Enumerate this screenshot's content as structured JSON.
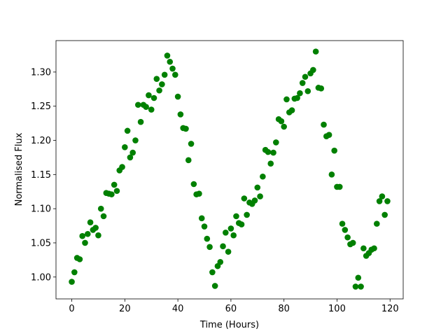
{
  "chart_data": {
    "type": "scatter",
    "x_label": "Time (Hours)",
    "y_label": "Normalised Flux",
    "color": "#008000",
    "xlim": [
      -5.95,
      124.95
    ],
    "ylim": [
      0.968,
      1.346
    ],
    "xticks": [
      0,
      20,
      40,
      60,
      80,
      100,
      120
    ],
    "yticks": [
      {
        "value": 1.0,
        "label": "1.00"
      },
      {
        "value": 1.05,
        "label": "1.05"
      },
      {
        "value": 1.1,
        "label": "1.10"
      },
      {
        "value": 1.15,
        "label": "1.15"
      },
      {
        "value": 1.2,
        "label": "1.20"
      },
      {
        "value": 1.25,
        "label": "1.25"
      },
      {
        "value": 1.3,
        "label": "1.30"
      }
    ],
    "x": [
      0,
      1,
      2,
      3,
      4,
      5,
      6,
      7,
      8,
      9,
      10,
      11,
      12,
      13,
      14,
      15,
      16,
      17,
      18,
      19,
      20,
      21,
      22,
      23,
      24,
      25,
      26,
      27,
      28,
      29,
      30,
      31,
      32,
      33,
      34,
      35,
      36,
      37,
      38,
      39,
      40,
      41,
      42,
      43,
      44,
      45,
      46,
      47,
      48,
      49,
      50,
      51,
      52,
      53,
      54,
      55,
      56,
      57,
      58,
      59,
      60,
      61,
      62,
      63,
      64,
      65,
      66,
      67,
      68,
      69,
      70,
      71,
      72,
      73,
      74,
      75,
      76,
      77,
      78,
      79,
      80,
      81,
      82,
      83,
      84,
      85,
      86,
      87,
      88,
      89,
      90,
      91,
      92,
      93,
      94,
      95,
      96,
      97,
      98,
      99,
      100,
      101,
      102,
      103,
      104,
      105,
      106,
      107,
      108,
      109,
      110,
      111,
      112,
      113,
      114,
      115,
      116,
      117,
      118,
      119
    ],
    "y": [
      0.993,
      1.007,
      1.028,
      1.026,
      1.06,
      1.05,
      1.063,
      1.08,
      1.069,
      1.072,
      1.061,
      1.1,
      1.089,
      1.123,
      1.122,
      1.121,
      1.135,
      1.126,
      1.156,
      1.161,
      1.19,
      1.214,
      1.175,
      1.182,
      1.2,
      1.252,
      1.227,
      1.252,
      1.249,
      1.266,
      1.245,
      1.262,
      1.29,
      1.273,
      1.282,
      1.296,
      1.324,
      1.315,
      1.305,
      1.296,
      1.264,
      1.238,
      1.218,
      1.217,
      1.171,
      1.195,
      1.136,
      1.121,
      1.122,
      1.086,
      1.074,
      1.056,
      1.044,
      1.007,
      0.987,
      1.016,
      1.022,
      1.045,
      1.065,
      1.037,
      1.071,
      1.061,
      1.089,
      1.079,
      1.077,
      1.115,
      1.091,
      1.109,
      1.107,
      1.112,
      1.131,
      1.118,
      1.147,
      1.186,
      1.183,
      1.166,
      1.182,
      1.197,
      1.231,
      1.228,
      1.22,
      1.26,
      1.241,
      1.244,
      1.261,
      1.262,
      1.269,
      1.284,
      1.293,
      1.272,
      1.298,
      1.303,
      1.33,
      1.277,
      1.276,
      1.223,
      1.206,
      1.208,
      1.15,
      1.185,
      1.132,
      1.132,
      1.078,
      1.069,
      1.058,
      1.048,
      1.05,
      0.986,
      0.999,
      0.986,
      1.042,
      1.031,
      1.035,
      1.04,
      1.042,
      1.078,
      1.111,
      1.118,
      1.091,
      1.111
    ]
  }
}
